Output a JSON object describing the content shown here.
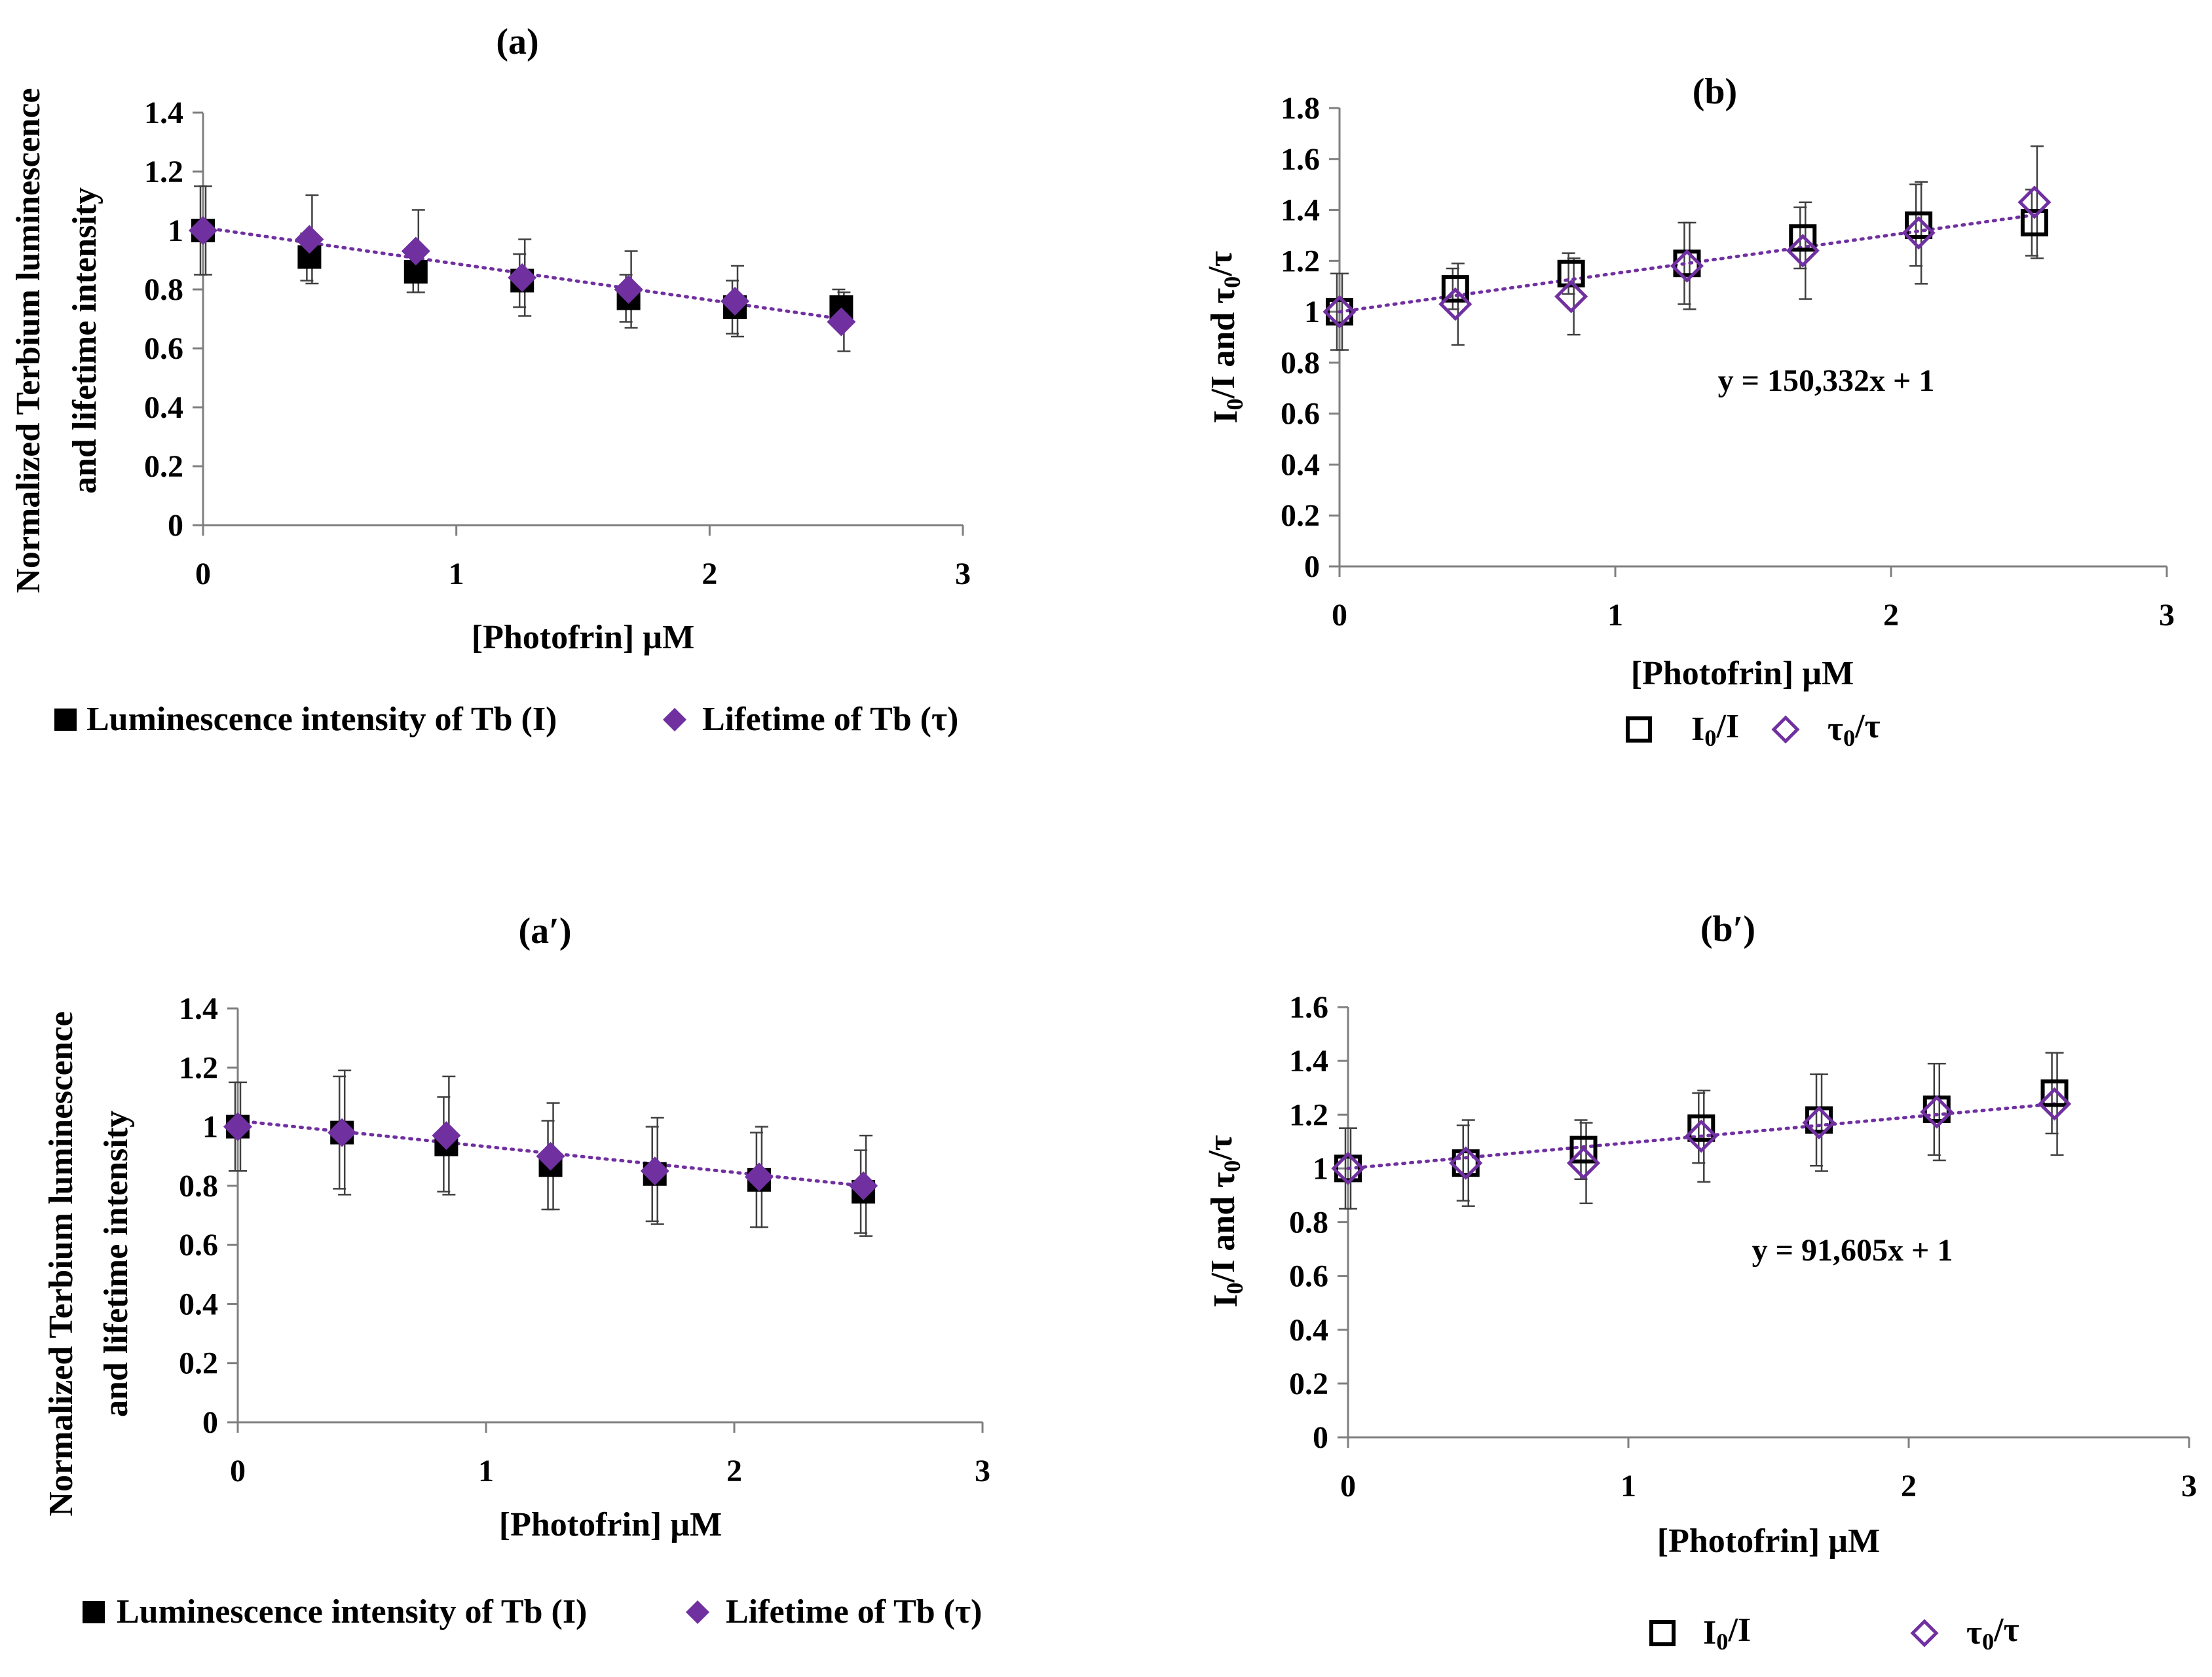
{
  "colors": {
    "tau": "#7030A0",
    "intensity": "#000000",
    "axis": "#7f7f7f",
    "errorbar": "#404040"
  },
  "chart_data": [
    {
      "id": "a",
      "type": "scatter",
      "title": "(a)",
      "xlabel": "[Photofrin] µM",
      "ylabel_lines": [
        "Normalized Terbium luminescence",
        "and lifetime intensity"
      ],
      "xlim": [
        0,
        3
      ],
      "ylim": [
        0,
        1.4
      ],
      "xticks": [
        "0",
        "1",
        "2",
        "3"
      ],
      "yticks": [
        "0",
        "0.2",
        "0.4",
        "0.6",
        "0.8",
        "1",
        "1.2",
        "1.4"
      ],
      "legend": "bottom",
      "series": [
        {
          "name": "Luminescence intensity of Tb (I)",
          "marker": "filled-square",
          "color": "#000000",
          "x": [
            0,
            0.42,
            0.84,
            1.26,
            1.68,
            2.1,
            2.52
          ],
          "y": [
            1.0,
            0.91,
            0.86,
            0.83,
            0.77,
            0.74,
            0.74
          ],
          "err": [
            0.15,
            0.08,
            0.07,
            0.09,
            0.08,
            0.09,
            0.06
          ]
        },
        {
          "name": "Lifetime of Tb (τ)",
          "marker": "filled-diamond",
          "color": "#7030A0",
          "x": [
            0,
            0.42,
            0.84,
            1.26,
            1.68,
            2.1,
            2.52
          ],
          "y": [
            1.0,
            0.97,
            0.93,
            0.84,
            0.8,
            0.76,
            0.69
          ],
          "err": [
            0.15,
            0.15,
            0.14,
            0.13,
            0.13,
            0.12,
            0.1
          ]
        }
      ],
      "trendline": {
        "series": 1,
        "x": [
          0,
          2.52
        ],
        "y": [
          1.01,
          0.7
        ]
      }
    },
    {
      "id": "b",
      "type": "scatter",
      "title": "(b)",
      "xlabel": "[Photofrin] µM",
      "ylabel": "I0/I and τ0/τ",
      "xlim": [
        0,
        3
      ],
      "ylim": [
        0,
        1.8
      ],
      "xticks": [
        "0",
        "1",
        "2",
        "3"
      ],
      "yticks": [
        "0",
        "0.2",
        "0.4",
        "0.6",
        "0.8",
        "1",
        "1.2",
        "1.4",
        "1.6",
        "1.8"
      ],
      "legend": "bottom",
      "annotation": "y = 150,332x + 1",
      "series": [
        {
          "name": "I0/I",
          "marker": "open-square",
          "color": "#000000",
          "x": [
            0,
            0.42,
            0.84,
            1.26,
            1.68,
            2.1,
            2.52
          ],
          "y": [
            1.0,
            1.09,
            1.15,
            1.19,
            1.29,
            1.34,
            1.35
          ],
          "err": [
            0.15,
            0.08,
            0.08,
            0.16,
            0.12,
            0.16,
            0.13
          ]
        },
        {
          "name": "τ0/τ",
          "marker": "open-diamond",
          "color": "#7030A0",
          "x": [
            0,
            0.42,
            0.84,
            1.26,
            1.68,
            2.1,
            2.52
          ],
          "y": [
            1.0,
            1.03,
            1.06,
            1.18,
            1.24,
            1.31,
            1.43
          ],
          "err": [
            0.15,
            0.16,
            0.15,
            0.17,
            0.19,
            0.2,
            0.22
          ]
        }
      ],
      "trendline": {
        "series": 1,
        "x": [
          0,
          2.52
        ],
        "y": [
          1.0,
          1.38
        ]
      }
    },
    {
      "id": "a2",
      "type": "scatter",
      "title": "(a′)",
      "xlabel": "[Photofrin] µM",
      "ylabel_lines": [
        "Normalized Terbium luminescence",
        "and lifetime intensity"
      ],
      "xlim": [
        0,
        3
      ],
      "ylim": [
        0,
        1.4
      ],
      "xticks": [
        "0",
        "1",
        "2",
        "3"
      ],
      "yticks": [
        "0",
        "0.2",
        "0.4",
        "0.6",
        "0.8",
        "1",
        "1.2",
        "1.4"
      ],
      "legend": "bottom",
      "series": [
        {
          "name": "Luminescence intensity of Tb (I)",
          "marker": "filled-square",
          "color": "#000000",
          "x": [
            0,
            0.42,
            0.84,
            1.26,
            1.68,
            2.1,
            2.52
          ],
          "y": [
            1.0,
            0.98,
            0.94,
            0.87,
            0.84,
            0.82,
            0.78
          ],
          "err": [
            0.15,
            0.19,
            0.16,
            0.15,
            0.16,
            0.16,
            0.14
          ]
        },
        {
          "name": "Lifetime of Tb (τ)",
          "marker": "filled-diamond",
          "color": "#7030A0",
          "x": [
            0,
            0.42,
            0.84,
            1.26,
            1.68,
            2.1,
            2.52
          ],
          "y": [
            1.0,
            0.98,
            0.97,
            0.9,
            0.85,
            0.83,
            0.8
          ],
          "err": [
            0.15,
            0.21,
            0.2,
            0.18,
            0.18,
            0.17,
            0.17
          ]
        }
      ],
      "trendline": {
        "series": 1,
        "x": [
          0,
          2.52
        ],
        "y": [
          1.02,
          0.8
        ]
      }
    },
    {
      "id": "b2",
      "type": "scatter",
      "title": "(b′)",
      "xlabel": "[Photofrin] µM",
      "ylabel": "I0/I and τ0/τ",
      "xlim": [
        0,
        3
      ],
      "ylim": [
        0,
        1.6
      ],
      "xticks": [
        "0",
        "1",
        "2",
        "3"
      ],
      "yticks": [
        "0",
        "0.2",
        "0.4",
        "0.6",
        "0.8",
        "1",
        "1.2",
        "1.4",
        "1.6"
      ],
      "legend": "bottom",
      "annotation": "y = 91,605x + 1",
      "series": [
        {
          "name": "I0/I",
          "marker": "open-square",
          "color": "#000000",
          "x": [
            0,
            0.42,
            0.84,
            1.26,
            1.68,
            2.1,
            2.52
          ],
          "y": [
            1.0,
            1.02,
            1.07,
            1.15,
            1.18,
            1.22,
            1.28
          ],
          "err": [
            0.15,
            0.14,
            0.11,
            0.13,
            0.17,
            0.17,
            0.15
          ]
        },
        {
          "name": "τ0/τ",
          "marker": "open-diamond",
          "color": "#7030A0",
          "x": [
            0,
            0.42,
            0.84,
            1.26,
            1.68,
            2.1,
            2.52
          ],
          "y": [
            1.0,
            1.02,
            1.02,
            1.12,
            1.17,
            1.21,
            1.24
          ],
          "err": [
            0.15,
            0.16,
            0.15,
            0.17,
            0.18,
            0.18,
            0.19
          ]
        }
      ],
      "trendline": {
        "series": 1,
        "x": [
          0,
          2.52
        ],
        "y": [
          1.0,
          1.24
        ]
      }
    }
  ]
}
